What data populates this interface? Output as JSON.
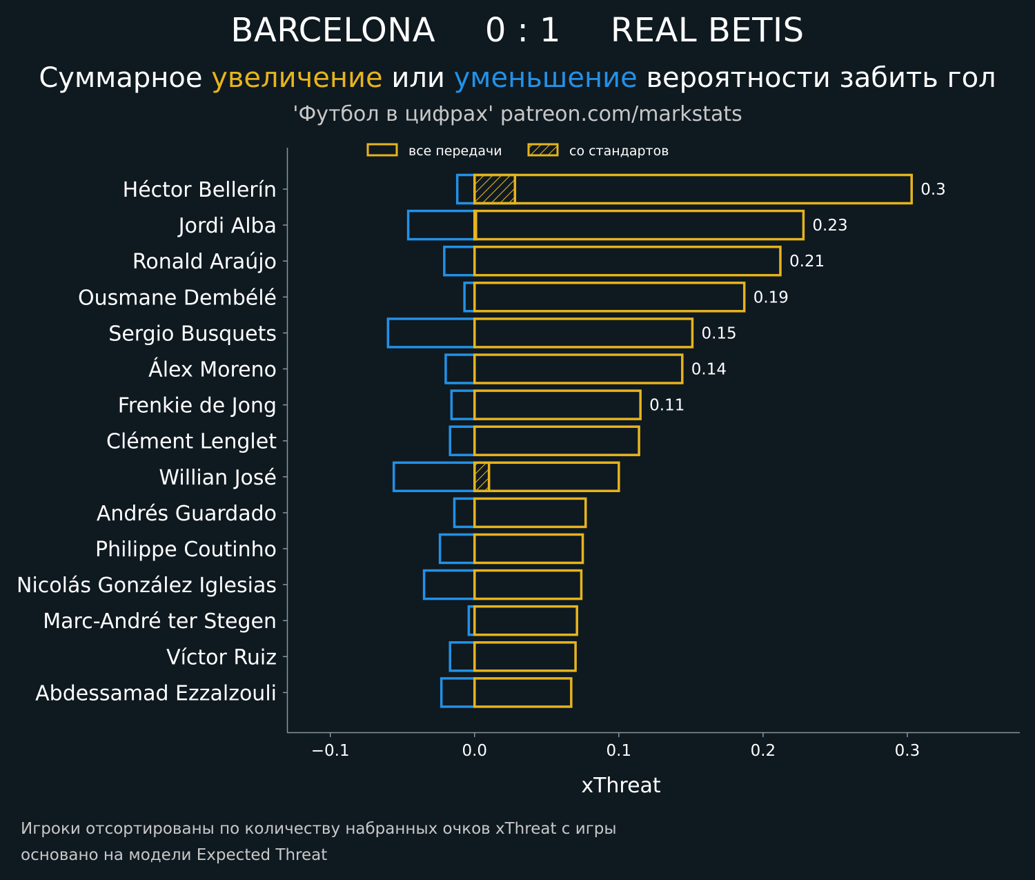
{
  "header": {
    "home_team": "BARCELONA",
    "score": "0 : 1",
    "away_team": "REAL BETIS",
    "subtitle_part1": "Суммарное ",
    "subtitle_increase": "увеличение",
    "subtitle_part2": " или ",
    "subtitle_decrease": "уменьшение",
    "subtitle_part3": " вероятности забить гол",
    "source": "'Футбол в цифрах' patreon.com/markstats"
  },
  "colors": {
    "background": "#0f1920",
    "increase": "#e6b41e",
    "decrease": "#2391e6",
    "axis": "#8a969e",
    "text": "#ffffff",
    "muted": "#c8c8c8"
  },
  "legend": {
    "all_passes": "все передачи",
    "set_pieces": "со стандартов"
  },
  "chart_data": {
    "type": "bar",
    "orientation": "horizontal",
    "xlabel": "xThreat",
    "ylabel": "",
    "xlim": [
      -0.13,
      0.378
    ],
    "xticks": [
      -0.1,
      0.0,
      0.1,
      0.2,
      0.3
    ],
    "xtick_labels": [
      "−0.1",
      "0.0",
      "0.1",
      "0.2",
      "0.3"
    ],
    "categories": [
      "Héctor Bellerín",
      "Jordi Alba",
      "Ronald Araújo",
      "Ousmane Dembélé",
      "Sergio Busquets",
      "Álex Moreno",
      "Frenkie de Jong",
      "Clément Lenglet",
      "Willian José",
      "Andrés Guardado",
      "Philippe Coutinho",
      "Nicolás González Iglesias",
      "Marc-André ter Stegen",
      "Víctor Ruiz",
      "Abdessamad Ezzalzouli"
    ],
    "series": [
      {
        "name": "increase",
        "values": [
          0.303,
          0.228,
          0.212,
          0.187,
          0.151,
          0.144,
          0.115,
          0.114,
          0.1,
          0.077,
          0.075,
          0.074,
          0.071,
          0.07,
          0.067
        ]
      },
      {
        "name": "decrease",
        "values": [
          -0.012,
          -0.046,
          -0.021,
          -0.007,
          -0.06,
          -0.02,
          -0.016,
          -0.017,
          -0.056,
          -0.014,
          -0.024,
          -0.035,
          -0.004,
          -0.017,
          -0.023
        ]
      },
      {
        "name": "set_pieces_increase",
        "values": [
          0.028,
          0.001,
          0,
          0,
          0,
          0,
          0,
          0,
          0.01,
          0,
          0,
          0,
          0,
          0,
          0
        ]
      }
    ],
    "value_labels": [
      "0.3",
      "0.23",
      "0.21",
      "0.19",
      "0.15",
      "0.14",
      "0.11",
      null,
      null,
      null,
      null,
      null,
      null,
      null,
      null
    ],
    "grid": false,
    "legend_position": "top-center"
  },
  "footer": {
    "note1": "Игроки отсортированы по количеству набранных очков xThreat с игры",
    "note2": "основано на модели Expected Threat"
  }
}
